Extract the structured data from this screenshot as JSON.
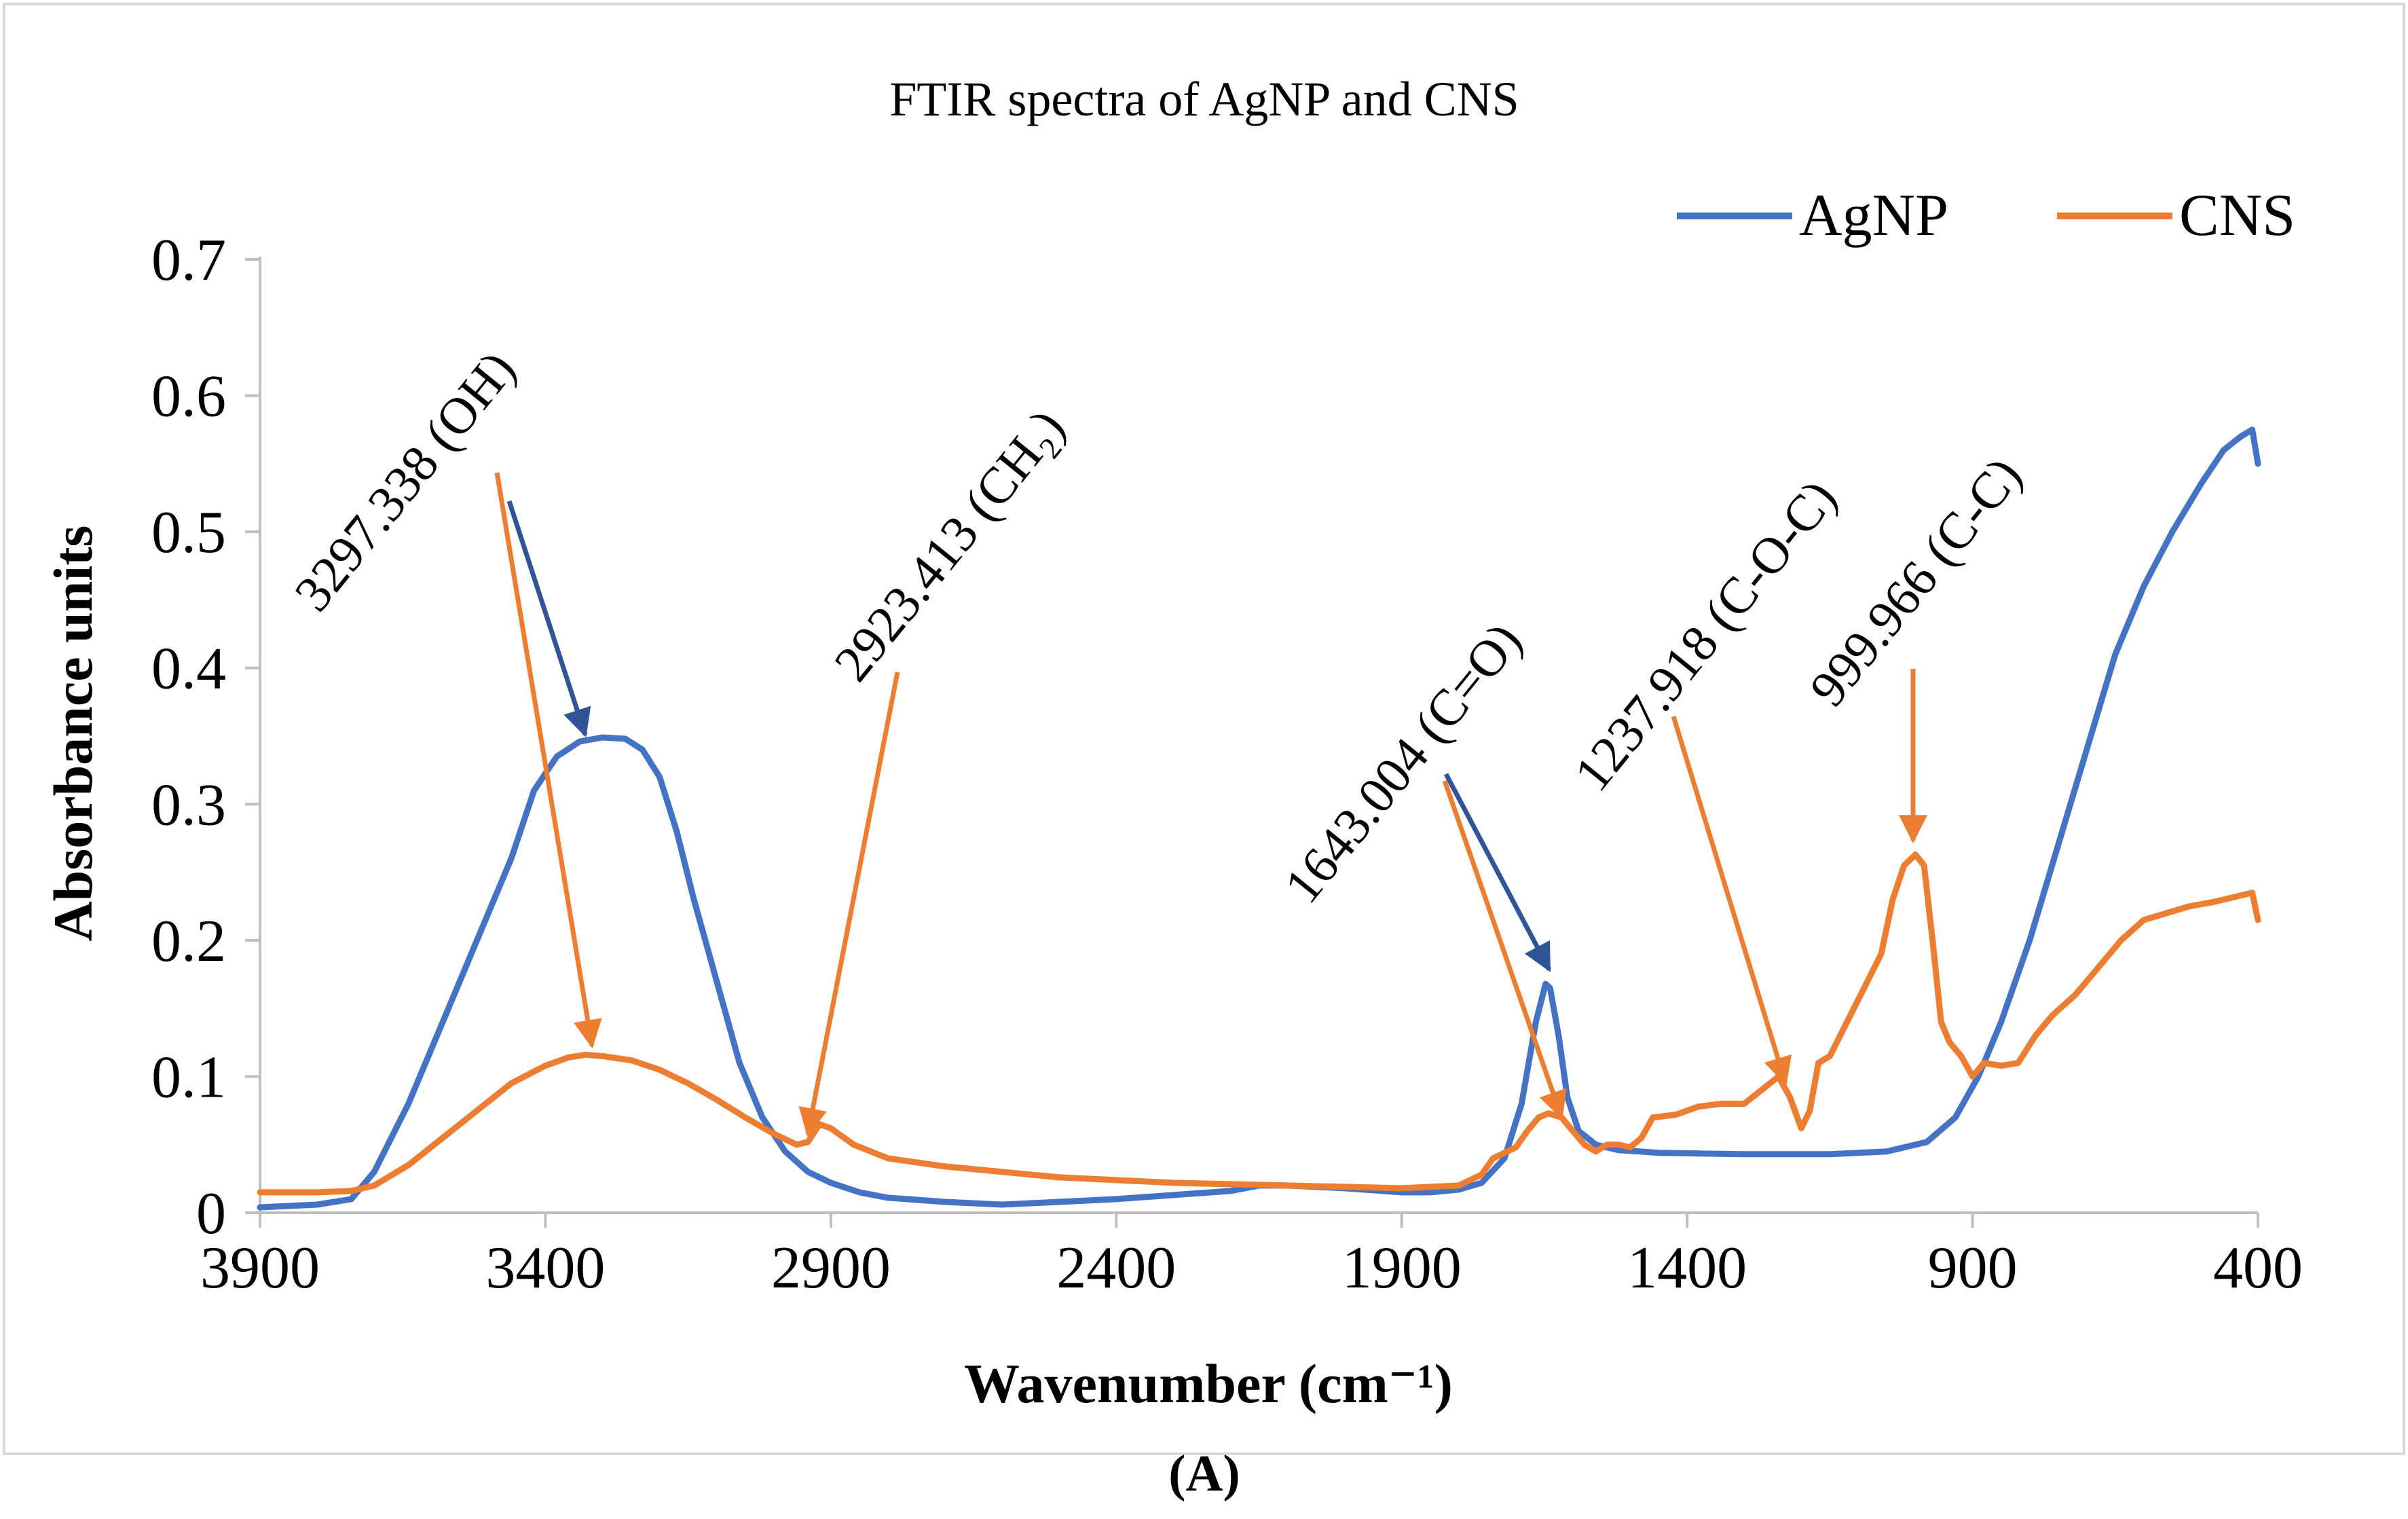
{
  "chart_data": {
    "type": "line",
    "title": "FTIR spectra of AgNP and CNS",
    "xlabel": "Wavenumber (cm⁻¹)",
    "ylabel": "Absorbance units",
    "caption": "(A)",
    "xlim": [
      3900,
      400
    ],
    "ylim": [
      0,
      0.7
    ],
    "x_reversed": true,
    "grid": false,
    "legend_position": "top-right",
    "x_ticks": [
      "3900",
      "3400",
      "2900",
      "2400",
      "1900",
      "1400",
      "900",
      "400"
    ],
    "y_ticks": [
      "0",
      "0.1",
      "0.2",
      "0.3",
      "0.4",
      "0.5",
      "0.6",
      "0.7"
    ],
    "series": [
      {
        "name": "AgNP",
        "color": "#4472C4",
        "points": [
          [
            3900,
            0.004
          ],
          [
            3800,
            0.006
          ],
          [
            3740,
            0.01
          ],
          [
            3700,
            0.03
          ],
          [
            3640,
            0.08
          ],
          [
            3580,
            0.14
          ],
          [
            3520,
            0.2
          ],
          [
            3460,
            0.26
          ],
          [
            3420,
            0.31
          ],
          [
            3380,
            0.335
          ],
          [
            3340,
            0.346
          ],
          [
            3300,
            0.349
          ],
          [
            3260,
            0.348
          ],
          [
            3230,
            0.34
          ],
          [
            3200,
            0.32
          ],
          [
            3170,
            0.28
          ],
          [
            3140,
            0.23
          ],
          [
            3100,
            0.17
          ],
          [
            3060,
            0.11
          ],
          [
            3020,
            0.07
          ],
          [
            2980,
            0.045
          ],
          [
            2940,
            0.03
          ],
          [
            2900,
            0.022
          ],
          [
            2850,
            0.015
          ],
          [
            2800,
            0.011
          ],
          [
            2700,
            0.008
          ],
          [
            2600,
            0.006
          ],
          [
            2500,
            0.008
          ],
          [
            2400,
            0.01
          ],
          [
            2300,
            0.013
          ],
          [
            2200,
            0.016
          ],
          [
            2150,
            0.02
          ],
          [
            2100,
            0.02
          ],
          [
            2000,
            0.018
          ],
          [
            1900,
            0.015
          ],
          [
            1850,
            0.015
          ],
          [
            1800,
            0.017
          ],
          [
            1760,
            0.022
          ],
          [
            1720,
            0.04
          ],
          [
            1690,
            0.08
          ],
          [
            1665,
            0.14
          ],
          [
            1648,
            0.168
          ],
          [
            1640,
            0.165
          ],
          [
            1625,
            0.13
          ],
          [
            1610,
            0.085
          ],
          [
            1590,
            0.06
          ],
          [
            1560,
            0.05
          ],
          [
            1520,
            0.046
          ],
          [
            1450,
            0.044
          ],
          [
            1300,
            0.043
          ],
          [
            1150,
            0.043
          ],
          [
            1050,
            0.045
          ],
          [
            980,
            0.052
          ],
          [
            930,
            0.07
          ],
          [
            890,
            0.1
          ],
          [
            850,
            0.14
          ],
          [
            800,
            0.2
          ],
          [
            750,
            0.27
          ],
          [
            700,
            0.34
          ],
          [
            650,
            0.41
          ],
          [
            600,
            0.46
          ],
          [
            550,
            0.5
          ],
          [
            500,
            0.535
          ],
          [
            460,
            0.56
          ],
          [
            430,
            0.57
          ],
          [
            410,
            0.575
          ],
          [
            400,
            0.55
          ]
        ]
      },
      {
        "name": "CNS",
        "color": "#ED7D31",
        "points": [
          [
            3900,
            0.015
          ],
          [
            3800,
            0.015
          ],
          [
            3740,
            0.016
          ],
          [
            3700,
            0.02
          ],
          [
            3640,
            0.035
          ],
          [
            3580,
            0.055
          ],
          [
            3520,
            0.075
          ],
          [
            3460,
            0.095
          ],
          [
            3400,
            0.108
          ],
          [
            3360,
            0.114
          ],
          [
            3330,
            0.116
          ],
          [
            3300,
            0.115
          ],
          [
            3250,
            0.112
          ],
          [
            3200,
            0.105
          ],
          [
            3150,
            0.095
          ],
          [
            3100,
            0.083
          ],
          [
            3050,
            0.07
          ],
          [
            3000,
            0.058
          ],
          [
            2960,
            0.05
          ],
          [
            2940,
            0.052
          ],
          [
            2920,
            0.065
          ],
          [
            2900,
            0.062
          ],
          [
            2860,
            0.05
          ],
          [
            2800,
            0.04
          ],
          [
            2700,
            0.034
          ],
          [
            2600,
            0.03
          ],
          [
            2500,
            0.026
          ],
          [
            2400,
            0.024
          ],
          [
            2300,
            0.022
          ],
          [
            2200,
            0.021
          ],
          [
            2100,
            0.02
          ],
          [
            2000,
            0.019
          ],
          [
            1900,
            0.018
          ],
          [
            1800,
            0.02
          ],
          [
            1760,
            0.028
          ],
          [
            1740,
            0.04
          ],
          [
            1700,
            0.048
          ],
          [
            1680,
            0.06
          ],
          [
            1660,
            0.07
          ],
          [
            1643,
            0.073
          ],
          [
            1620,
            0.07
          ],
          [
            1600,
            0.06
          ],
          [
            1580,
            0.05
          ],
          [
            1560,
            0.045
          ],
          [
            1540,
            0.05
          ],
          [
            1520,
            0.05
          ],
          [
            1500,
            0.048
          ],
          [
            1480,
            0.055
          ],
          [
            1460,
            0.07
          ],
          [
            1420,
            0.072
          ],
          [
            1380,
            0.078
          ],
          [
            1340,
            0.08
          ],
          [
            1300,
            0.08
          ],
          [
            1270,
            0.09
          ],
          [
            1240,
            0.1
          ],
          [
            1220,
            0.085
          ],
          [
            1200,
            0.062
          ],
          [
            1185,
            0.075
          ],
          [
            1170,
            0.11
          ],
          [
            1150,
            0.115
          ],
          [
            1120,
            0.14
          ],
          [
            1090,
            0.165
          ],
          [
            1060,
            0.19
          ],
          [
            1040,
            0.23
          ],
          [
            1020,
            0.255
          ],
          [
            1000,
            0.263
          ],
          [
            985,
            0.255
          ],
          [
            970,
            0.2
          ],
          [
            955,
            0.14
          ],
          [
            940,
            0.125
          ],
          [
            920,
            0.115
          ],
          [
            900,
            0.1
          ],
          [
            880,
            0.11
          ],
          [
            850,
            0.108
          ],
          [
            820,
            0.11
          ],
          [
            790,
            0.13
          ],
          [
            760,
            0.145
          ],
          [
            720,
            0.16
          ],
          [
            680,
            0.18
          ],
          [
            640,
            0.2
          ],
          [
            600,
            0.215
          ],
          [
            560,
            0.22
          ],
          [
            520,
            0.225
          ],
          [
            480,
            0.228
          ],
          [
            440,
            0.232
          ],
          [
            410,
            0.235
          ],
          [
            400,
            0.215
          ]
        ]
      }
    ],
    "annotations": [
      {
        "text": "3297.338 (OH)",
        "colors": [
          "#4472C4",
          "#ED7D31"
        ]
      },
      {
        "text": "2923.413 (CH₂)",
        "colors": [
          "#ED7D31"
        ]
      },
      {
        "text": "1643.004 (C=O)",
        "colors": [
          "#4472C4",
          "#ED7D31"
        ]
      },
      {
        "text": "1237.918 (C-O-C)",
        "colors": [
          "#ED7D31"
        ]
      },
      {
        "text": "999.966 (C-C)",
        "colors": [
          "#ED7D31"
        ]
      }
    ]
  }
}
